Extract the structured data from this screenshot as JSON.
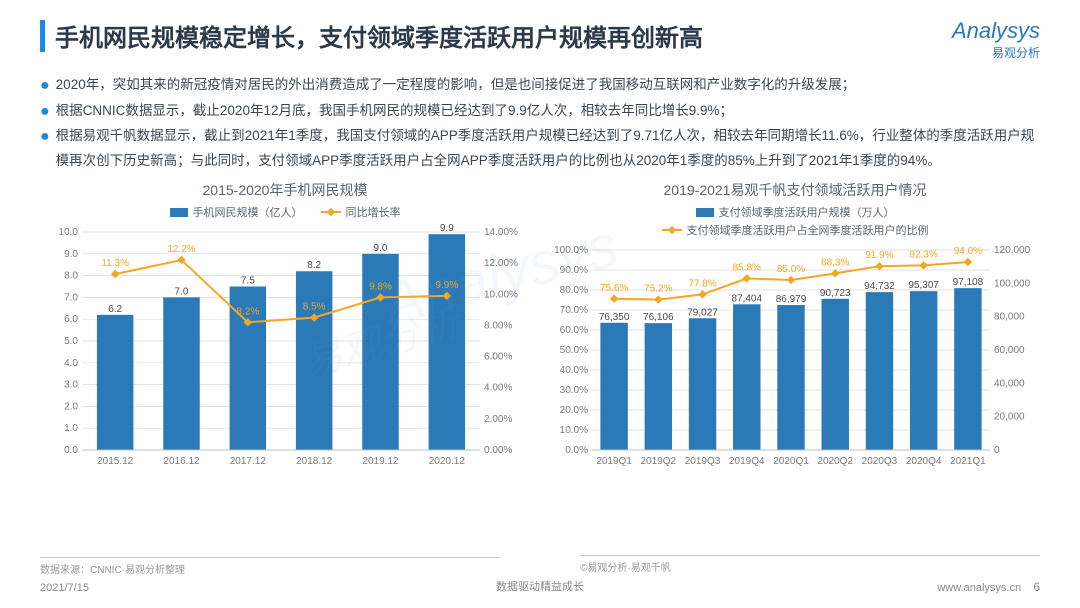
{
  "title": "手机网民规模稳定增长，支付领域季度活跃用户规模再创新高",
  "logo": {
    "brand": "Analysys",
    "sub": "易观分析"
  },
  "bullets": [
    "2020年，突如其来的新冠疫情对居民的外出消费造成了一定程度的影响，但是也间接促进了我国移动互联网和产业数字化的升级发展；",
    "根据CNNIC数据显示，截止2020年12月底，我国手机网民的规模已经达到了9.9亿人次，相较去年同比增长9.9%；",
    "根据易观千帆数据显示，截止到2021年1季度，我国支付领域的APP季度活跃用户规模已经达到了9.71亿人次，相较去年同期增长11.6%，行业整体的季度活跃用户规模再次创下历史新高；与此同时，支付领域APP季度活跃用户占全网APP季度活跃用户的比例也从2020年1季度的85%上升到了2021年1季度的94%。"
  ],
  "chart1": {
    "title": "2015-2020年手机网民规模",
    "type": "bar+line",
    "legend_bar": "手机网民规模（亿人）",
    "legend_line": "同比增长率",
    "bar_color": "#2a7ab8",
    "line_color": "#f5a623",
    "categories": [
      "2015.12",
      "2016.12",
      "2017.12",
      "2018.12",
      "2019.12",
      "2020.12"
    ],
    "bar_values": [
      6.2,
      7.0,
      7.5,
      8.2,
      9.0,
      9.9
    ],
    "line_values_pct": [
      11.3,
      12.2,
      8.2,
      8.5,
      9.8,
      9.9
    ],
    "y_left": {
      "min": 0,
      "max": 10,
      "step": 1,
      "fmt_suffix": ".0"
    },
    "y_right": {
      "min": 0,
      "max": 14,
      "step": 2,
      "fmt_suffix": ".00%"
    },
    "grid_color": "#d8d8d8",
    "label_fontsize": 10
  },
  "chart2": {
    "title": "2019-2021易观千帆支付领域活跃用户情况",
    "type": "bar+line",
    "legend_bar": "支付领域季度活跃用户规模（万人）",
    "legend_line": "支付领域季度活跃用户占全网季度活跃用户的比例",
    "bar_color": "#2a7ab8",
    "line_color": "#f5a623",
    "categories": [
      "2019Q1",
      "2019Q2",
      "2019Q3",
      "2019Q4",
      "2020Q1",
      "2020Q2",
      "2020Q3",
      "2020Q4",
      "2021Q1"
    ],
    "bar_values": [
      76350,
      76106,
      79027,
      87404,
      86979,
      90723,
      94732,
      95307,
      97108
    ],
    "line_values_pct": [
      75.6,
      75.2,
      77.8,
      85.8,
      85.0,
      88.3,
      91.9,
      92.3,
      94.0
    ],
    "y_left": {
      "min": 0,
      "max": 100,
      "step": 10,
      "fmt_suffix": ".0%"
    },
    "y_right": {
      "min": 0,
      "max": 120000,
      "step": 20000,
      "fmt_thousands": true
    },
    "grid_color": "#d8d8d8",
    "label_fontsize": 10
  },
  "footer": {
    "source_left": "数据来源：CNNIC·易观分析整理",
    "source_right": "©易观分析·易观千帆",
    "date": "2021/7/15",
    "center": "数据驱动精益成长",
    "url": "www.analysys.cn",
    "page": "6"
  },
  "colors": {
    "title_bar": "#1e88e5",
    "text_main": "#2b3a4a",
    "text_body": "#3a4752",
    "axis_text": "#7a7a7a"
  }
}
